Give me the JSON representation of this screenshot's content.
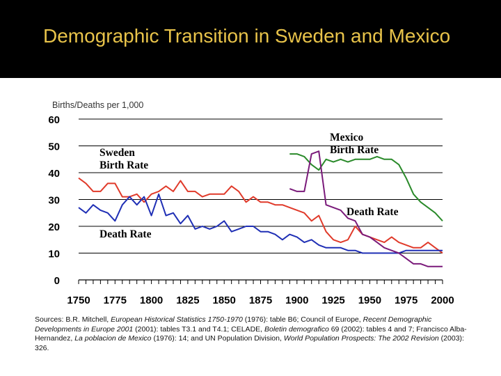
{
  "slide": {
    "title": "Demographic Transition in Sweden and Mexico",
    "sources": [
      {
        "text": "Sources: B.R. Mitchell, ",
        "italic": false
      },
      {
        "text": "European Historical Statistics 1750-1970",
        "italic": true
      },
      {
        "text": " (1976): table B6; Council of Europe, ",
        "italic": false
      },
      {
        "text": "Recent Demographic Developments in Europe 2001",
        "italic": true
      },
      {
        "text": " (2001): tables T3.1 and T4.1; CELADE, ",
        "italic": false
      },
      {
        "text": "Boletin demografico",
        "italic": true
      },
      {
        "text": " 69 (2002): tables 4 and 7; Francisco Alba-Hernandez, ",
        "italic": false
      },
      {
        "text": "La poblacion de Mexico",
        "italic": true
      },
      {
        "text": " (1976): 14; and UN Population Division, ",
        "italic": false
      },
      {
        "text": "World Population Prospects: The 2002 Revision",
        "italic": true
      },
      {
        "text": " (2003): 326.",
        "italic": false
      }
    ]
  },
  "chart_data": {
    "type": "line",
    "title": "",
    "ylabel": "Births/Deaths per 1,000",
    "xlabel": "",
    "xlim": [
      1750,
      2000
    ],
    "ylim": [
      0,
      60
    ],
    "x_ticks": [
      1750,
      1775,
      1800,
      1825,
      1850,
      1875,
      1900,
      1925,
      1950,
      1975,
      2000
    ],
    "y_ticks": [
      0,
      10,
      20,
      30,
      40,
      50,
      60
    ],
    "grid": "horizontal",
    "colors": {
      "sweden_birth": "#e03a2a",
      "sweden_death": "#1f2fb5",
      "mexico_birth": "#2a8a2a",
      "mexico_death": "#7a1a7a"
    },
    "annotations": [
      {
        "text": "Sweden\nBirth Rate",
        "series": "Sweden Birth Rate",
        "near_x": 1765,
        "near_y": 44
      },
      {
        "text": "Death Rate",
        "series": "Sweden Death Rate",
        "near_x": 1765,
        "near_y": 17
      },
      {
        "text": "Mexico\nBirth Rate",
        "series": "Mexico Birth Rate",
        "near_x": 1935,
        "near_y": 51
      },
      {
        "text": "Death Rate",
        "series": "Mexico Death Rate",
        "near_x": 1940,
        "near_y": 25
      }
    ],
    "series": [
      {
        "name": "Sweden Birth Rate",
        "color_key": "sweden_birth",
        "x": [
          1750,
          1755,
          1760,
          1765,
          1770,
          1775,
          1780,
          1785,
          1790,
          1795,
          1800,
          1805,
          1810,
          1815,
          1820,
          1825,
          1830,
          1835,
          1840,
          1845,
          1850,
          1855,
          1860,
          1865,
          1870,
          1875,
          1880,
          1885,
          1890,
          1895,
          1900,
          1905,
          1910,
          1915,
          1920,
          1925,
          1930,
          1935,
          1940,
          1945,
          1950,
          1955,
          1960,
          1965,
          1970,
          1975,
          1980,
          1985,
          1990,
          1995,
          2000
        ],
        "y": [
          38,
          36,
          33,
          33,
          36,
          36,
          31,
          31,
          32,
          29,
          32,
          33,
          35,
          33,
          37,
          33,
          33,
          31,
          32,
          32,
          32,
          35,
          33,
          29,
          31,
          29,
          29,
          28,
          28,
          27,
          26,
          25,
          22,
          24,
          18,
          15,
          14,
          15,
          20,
          17,
          16,
          15,
          14,
          16,
          14,
          13,
          12,
          12,
          14,
          12,
          10
        ]
      },
      {
        "name": "Sweden Death Rate",
        "color_key": "sweden_death",
        "x": [
          1750,
          1755,
          1760,
          1765,
          1770,
          1775,
          1780,
          1785,
          1790,
          1795,
          1800,
          1805,
          1810,
          1815,
          1820,
          1825,
          1830,
          1835,
          1840,
          1845,
          1850,
          1855,
          1860,
          1865,
          1870,
          1875,
          1880,
          1885,
          1890,
          1895,
          1900,
          1905,
          1910,
          1915,
          1920,
          1925,
          1930,
          1935,
          1940,
          1945,
          1950,
          1955,
          1960,
          1965,
          1970,
          1975,
          1980,
          1985,
          1990,
          1995,
          2000
        ],
        "y": [
          27,
          25,
          28,
          26,
          25,
          22,
          28,
          31,
          28,
          31,
          24,
          32,
          24,
          25,
          21,
          24,
          19,
          20,
          19,
          20,
          22,
          18,
          19,
          20,
          20,
          18,
          18,
          17,
          15,
          17,
          16,
          14,
          15,
          13,
          12,
          12,
          12,
          11,
          11,
          10,
          10,
          10,
          10,
          10,
          10,
          11,
          11,
          11,
          11,
          11,
          11
        ]
      },
      {
        "name": "Mexico Birth Rate",
        "color_key": "mexico_birth",
        "x": [
          1895,
          1900,
          1905,
          1910,
          1915,
          1920,
          1925,
          1930,
          1935,
          1940,
          1945,
          1950,
          1955,
          1960,
          1965,
          1970,
          1975,
          1980,
          1985,
          1990,
          1995,
          2000
        ],
        "y": [
          47,
          47,
          46,
          43,
          41,
          45,
          44,
          45,
          44,
          45,
          45,
          45,
          46,
          45,
          45,
          43,
          38,
          32,
          29,
          27,
          25,
          22
        ]
      },
      {
        "name": "Mexico Death Rate",
        "color_key": "mexico_death",
        "x": [
          1895,
          1900,
          1905,
          1910,
          1915,
          1920,
          1925,
          1930,
          1935,
          1940,
          1945,
          1950,
          1955,
          1960,
          1965,
          1970,
          1975,
          1980,
          1985,
          1990,
          1995,
          2000
        ],
        "y": [
          34,
          33,
          33,
          47,
          48,
          28,
          27,
          26,
          23,
          22,
          17,
          16,
          14,
          12,
          11,
          10,
          8,
          6,
          6,
          5,
          5,
          5
        ]
      }
    ]
  }
}
